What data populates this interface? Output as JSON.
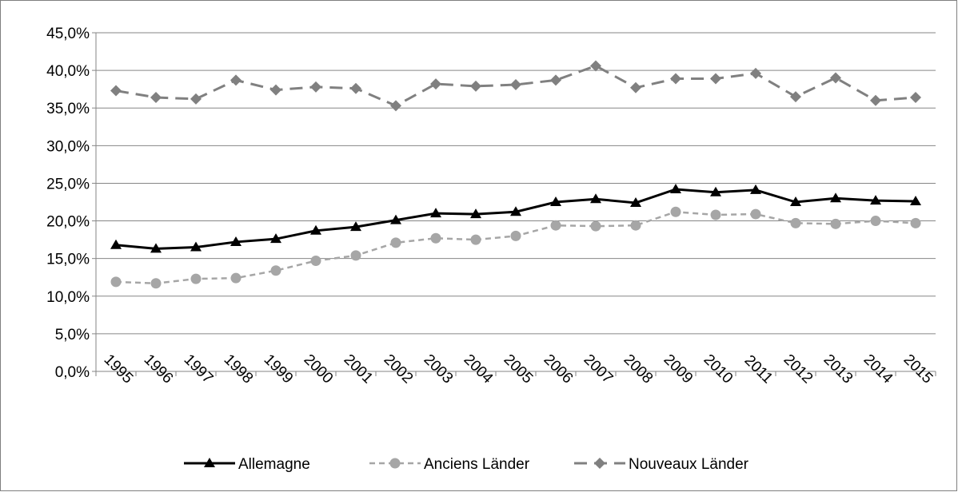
{
  "chart_data": {
    "type": "line",
    "categories": [
      "1995",
      "1996",
      "1997",
      "1998",
      "1999",
      "2000",
      "2001",
      "2002",
      "2003",
      "2004",
      "2005",
      "2006",
      "2007",
      "2008",
      "2009",
      "2010",
      "2011",
      "2012",
      "2013",
      "2014",
      "2015"
    ],
    "series": [
      {
        "name": "Allemagne",
        "color": "#000000",
        "marker": "triangle",
        "dash": "solid",
        "values": [
          16.8,
          16.3,
          16.5,
          17.2,
          17.6,
          18.7,
          19.2,
          20.1,
          21.0,
          20.9,
          21.2,
          22.5,
          22.9,
          22.4,
          24.2,
          23.8,
          24.1,
          22.5,
          23.0,
          22.7,
          22.6
        ]
      },
      {
        "name": "Anciens Länder",
        "color": "#a6a6a6",
        "marker": "circle",
        "dash": "short",
        "values": [
          11.9,
          11.7,
          12.3,
          12.4,
          13.4,
          14.7,
          15.4,
          17.1,
          17.7,
          17.5,
          18.0,
          19.4,
          19.3,
          19.4,
          21.2,
          20.8,
          20.9,
          19.7,
          19.6,
          20.0,
          19.7
        ]
      },
      {
        "name": "Nouveaux Länder",
        "color": "#808080",
        "marker": "diamond",
        "dash": "long",
        "values": [
          37.3,
          36.4,
          36.2,
          38.7,
          37.4,
          37.8,
          37.6,
          35.3,
          38.2,
          37.9,
          38.1,
          38.7,
          40.6,
          37.7,
          38.9,
          38.9,
          39.6,
          36.5,
          39.0,
          36.0,
          36.4
        ]
      }
    ],
    "ylim": [
      0,
      45
    ],
    "yticks": [
      {
        "value": 0,
        "label": "0,0%"
      },
      {
        "value": 5,
        "label": "5,0%"
      },
      {
        "value": 10,
        "label": "10,0%"
      },
      {
        "value": 15,
        "label": "15,0%"
      },
      {
        "value": 20,
        "label": "20,0%"
      },
      {
        "value": 25,
        "label": "25,0%"
      },
      {
        "value": 30,
        "label": "30,0%"
      },
      {
        "value": 35,
        "label": "35,0%"
      },
      {
        "value": 40,
        "label": "40,0%"
      },
      {
        "value": 45,
        "label": "45,0%"
      }
    ],
    "grid": true,
    "legend": "bottom"
  }
}
